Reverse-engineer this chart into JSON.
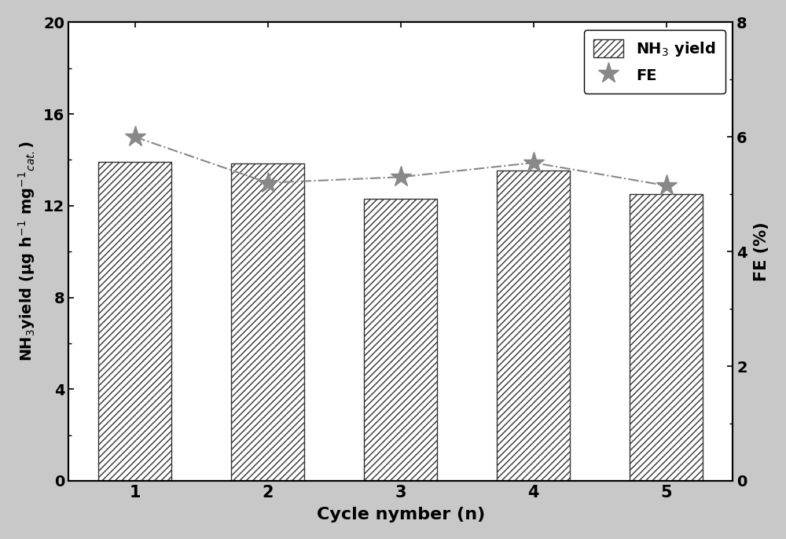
{
  "cycles": [
    1,
    2,
    3,
    4,
    5
  ],
  "nh3_yield": [
    13.9,
    13.85,
    12.3,
    13.55,
    12.5
  ],
  "fe_values": [
    6.0,
    5.2,
    5.3,
    5.55,
    5.15
  ],
  "bar_color": "white",
  "bar_hatch": "////",
  "line_color": "#888888",
  "marker_color": "#888888",
  "xlabel": "Cycle nymber (n)",
  "ylabel_left": "NH$_3$yield (μg h$^{-1}$ mg$^{-1}$$_{cat.}$)",
  "ylabel_right": "FE (%)",
  "ylim_left": [
    0,
    20
  ],
  "ylim_right": [
    0,
    8
  ],
  "yticks_left": [
    0,
    4,
    8,
    12,
    16,
    20
  ],
  "yticks_right": [
    0,
    2,
    4,
    6,
    8
  ],
  "legend_nh3": "NH$_3$ yield",
  "legend_fe": "FE",
  "background_color": "#c8c8c8",
  "plot_bg_color": "#ffffff",
  "bar_width": 0.55,
  "bar_edge_color": "#333333",
  "line_style": "-.",
  "line_width": 1.5,
  "marker_style": "*",
  "marker_size": 20,
  "figsize": [
    10.0,
    6.86
  ],
  "dpi": 100
}
